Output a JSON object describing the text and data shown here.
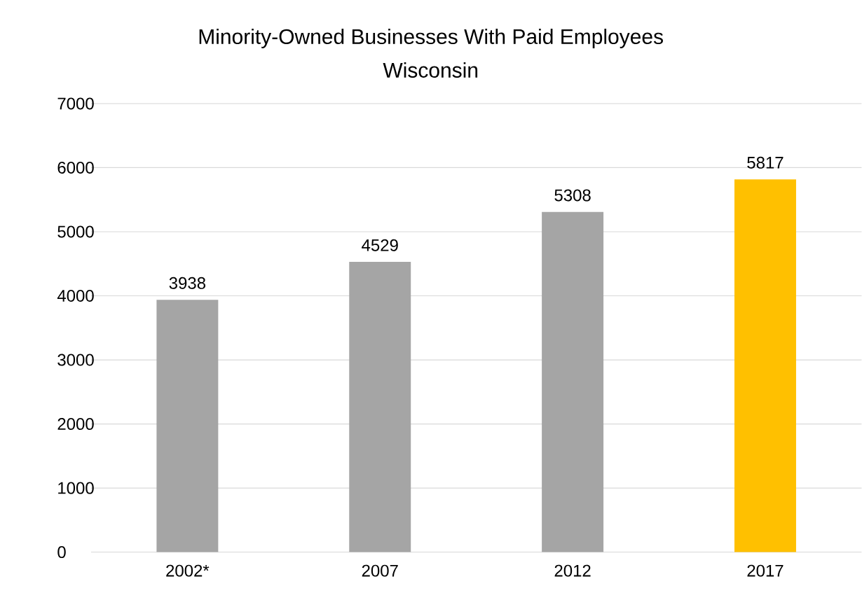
{
  "chart_data": {
    "type": "bar",
    "title": "Minority-Owned Businesses With Paid Employees",
    "subtitle": "Wisconsin",
    "categories": [
      "2002*",
      "2007",
      "2012",
      "2017"
    ],
    "values": [
      3938,
      4529,
      5308,
      5817
    ],
    "colors": [
      "#a5a5a5",
      "#a5a5a5",
      "#a5a5a5",
      "#ffc000"
    ],
    "ylim": [
      0,
      7000
    ],
    "yticks": [
      0,
      1000,
      2000,
      3000,
      4000,
      5000,
      6000,
      7000
    ],
    "grid": "y",
    "data_labels": true
  }
}
